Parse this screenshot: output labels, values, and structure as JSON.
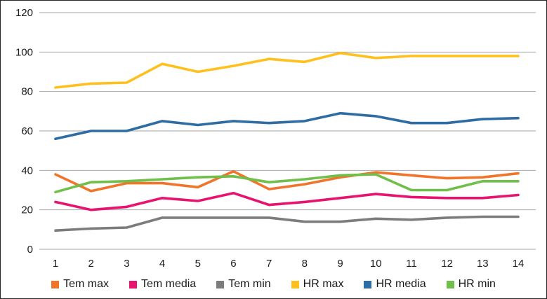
{
  "page": {
    "background": "#ffffff",
    "border_color": "#262626",
    "text_color": "#1a1a1a",
    "gridline_color": "#a6a6a6"
  },
  "chart_data": {
    "type": "line",
    "title": "",
    "xlabel": "",
    "ylabel": "",
    "x": [
      1,
      2,
      3,
      4,
      5,
      6,
      7,
      8,
      9,
      10,
      11,
      12,
      13,
      14
    ],
    "y_ticks": [
      0,
      20,
      40,
      60,
      80,
      100,
      120
    ],
    "ylim": [
      0,
      120
    ],
    "grid": "horizontal",
    "legend_position": "bottom",
    "series": [
      {
        "name": "Tem max",
        "color": "#F0752B",
        "values": [
          38,
          29.5,
          33.5,
          33.5,
          31.5,
          39.5,
          30.5,
          33,
          36.5,
          39,
          37.5,
          36,
          36.5,
          38.5
        ]
      },
      {
        "name": "Tem media",
        "color": "#E8136E",
        "values": [
          24,
          20,
          21.5,
          26,
          24.5,
          28.5,
          22.5,
          24,
          26,
          28,
          26.5,
          26,
          26,
          27.5
        ]
      },
      {
        "name": "Tem min",
        "color": "#7C7C7C",
        "values": [
          9.5,
          10.5,
          11,
          16,
          16,
          16,
          16,
          14,
          14,
          15.5,
          15,
          16,
          16.5,
          16.5
        ]
      },
      {
        "name": "HR max",
        "color": "#FFC01E",
        "values": [
          82,
          84,
          84.5,
          94,
          90,
          93,
          96.5,
          95,
          99.5,
          97,
          98,
          98,
          98,
          98
        ]
      },
      {
        "name": "HR media",
        "color": "#2E6DA4",
        "values": [
          56,
          60,
          60,
          65,
          63,
          65,
          64,
          65,
          69,
          67.5,
          64,
          64,
          66,
          66.5
        ]
      },
      {
        "name": "HR min",
        "color": "#6FBF4A",
        "values": [
          29,
          34,
          34.5,
          35.5,
          36.5,
          37,
          34,
          35.5,
          37.5,
          38,
          30,
          30,
          34.5,
          34.5
        ]
      }
    ]
  }
}
